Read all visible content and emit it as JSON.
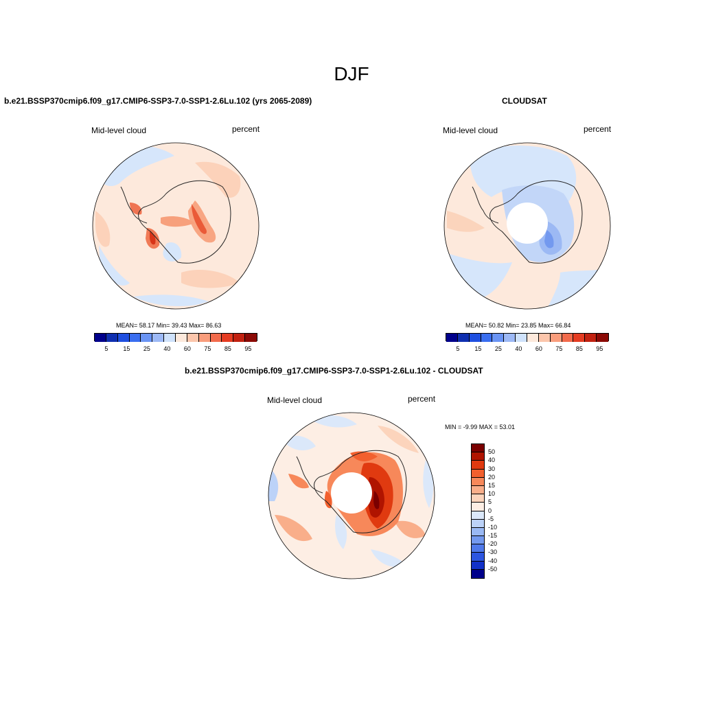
{
  "page": {
    "title": "DJF"
  },
  "panels": {
    "model": {
      "title": "b.e21.BSSP370cmip6.f09_g17.CMIP6-SSP3-7.0-SSP1-2.6Lu.102 (yrs 2065-2089)",
      "left_label": "Mid-level cloud",
      "right_label": "percent",
      "stats": "MEAN=  58.17  Min=  39.43  Max=  86.63"
    },
    "obs": {
      "title": "CLOUDSAT",
      "left_label": "Mid-level cloud",
      "right_label": "percent",
      "stats": "MEAN=  50.82  Min=  23.85  Max=  66.84"
    },
    "diff": {
      "title": "b.e21.BSSP370cmip6.f09_g17.CMIP6-SSP3-7.0-SSP1-2.6Lu.102 - CLOUDSAT",
      "left_label": "Mid-level cloud",
      "right_label": "percent",
      "stats": "MIN =  -9.99 MAX =  53.01"
    }
  },
  "colorbar_abs": {
    "colors": [
      "#00008b",
      "#0f2fb0",
      "#1f4fe0",
      "#3a6ef0",
      "#6a94f4",
      "#9db9f6",
      "#cfe2fb",
      "#fde9dc",
      "#fcc6ac",
      "#f99d7c",
      "#f26b4c",
      "#e53c22",
      "#c22110",
      "#8b0a06"
    ],
    "labels": [
      "5",
      "15",
      "25",
      "40",
      "60",
      "75",
      "85",
      "95"
    ]
  },
  "colorbar_diff": {
    "colors": [
      "#7a0000",
      "#b01400",
      "#e03a10",
      "#f2602e",
      "#f7885a",
      "#f9ae8a",
      "#fcd4bc",
      "#fdeee4",
      "#dbe8fa",
      "#bcd2f8",
      "#9ab9f4",
      "#7399ef",
      "#4f79ea",
      "#2d56e0",
      "#1231c8",
      "#00008b"
    ],
    "labels": [
      "50",
      "40",
      "30",
      "20",
      "15",
      "10",
      "5",
      "0",
      "-5",
      "-10",
      "-15",
      "-20",
      "-30",
      "-40",
      "-50"
    ]
  },
  "chart_data": [
    {
      "type": "heatmap",
      "title": "b.e21.BSSP370cmip6.f09_g17.CMIP6-SSP3-7.0-SSP1-2.6Lu.102 (yrs 2065-2089)",
      "variable": "Mid-level cloud",
      "units": "percent",
      "projection": "south polar stereographic",
      "mean": 58.17,
      "min": 39.43,
      "max": 86.63,
      "levels": [
        5,
        15,
        25,
        40,
        60,
        75,
        85,
        95
      ]
    },
    {
      "type": "heatmap",
      "title": "CLOUDSAT",
      "variable": "Mid-level cloud",
      "units": "percent",
      "projection": "south polar stereographic",
      "mean": 50.82,
      "min": 23.85,
      "max": 66.84,
      "levels": [
        5,
        15,
        25,
        40,
        60,
        75,
        85,
        95
      ]
    },
    {
      "type": "heatmap",
      "title": "b.e21.BSSP370cmip6.f09_g17.CMIP6-SSP3-7.0-SSP1-2.6Lu.102 - CLOUDSAT",
      "variable": "Mid-level cloud",
      "units": "percent",
      "projection": "south polar stereographic",
      "min": -9.99,
      "max": 53.01,
      "levels": [
        -50,
        -40,
        -30,
        -20,
        -15,
        -10,
        -5,
        0,
        5,
        10,
        15,
        20,
        30,
        40,
        50
      ]
    }
  ]
}
